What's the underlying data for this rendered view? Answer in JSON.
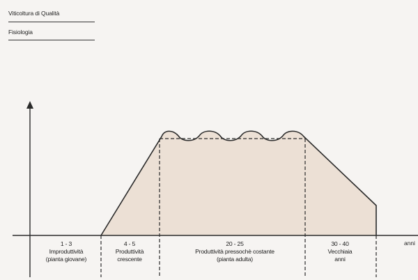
{
  "header": {
    "title": "Viticoltura di Qualità",
    "subtitle": "Fisiologia"
  },
  "diagram": {
    "x_unit": "anni",
    "phases": [
      {
        "years": "1 - 3",
        "line1": "Improduttività",
        "line2": "(pianta giovane)"
      },
      {
        "years": "4 - 5",
        "line1": "Produttività",
        "line2": "crescente"
      },
      {
        "years": "20 - 25",
        "line1": "Produttività pressochè costante",
        "line2": "(pianta adulta)"
      },
      {
        "years": "30 - 40",
        "line1": "Vecchiaia",
        "line2": "anni"
      }
    ],
    "colors": {
      "fill": "#ece0d5",
      "line": "#2a2a2a"
    }
  }
}
